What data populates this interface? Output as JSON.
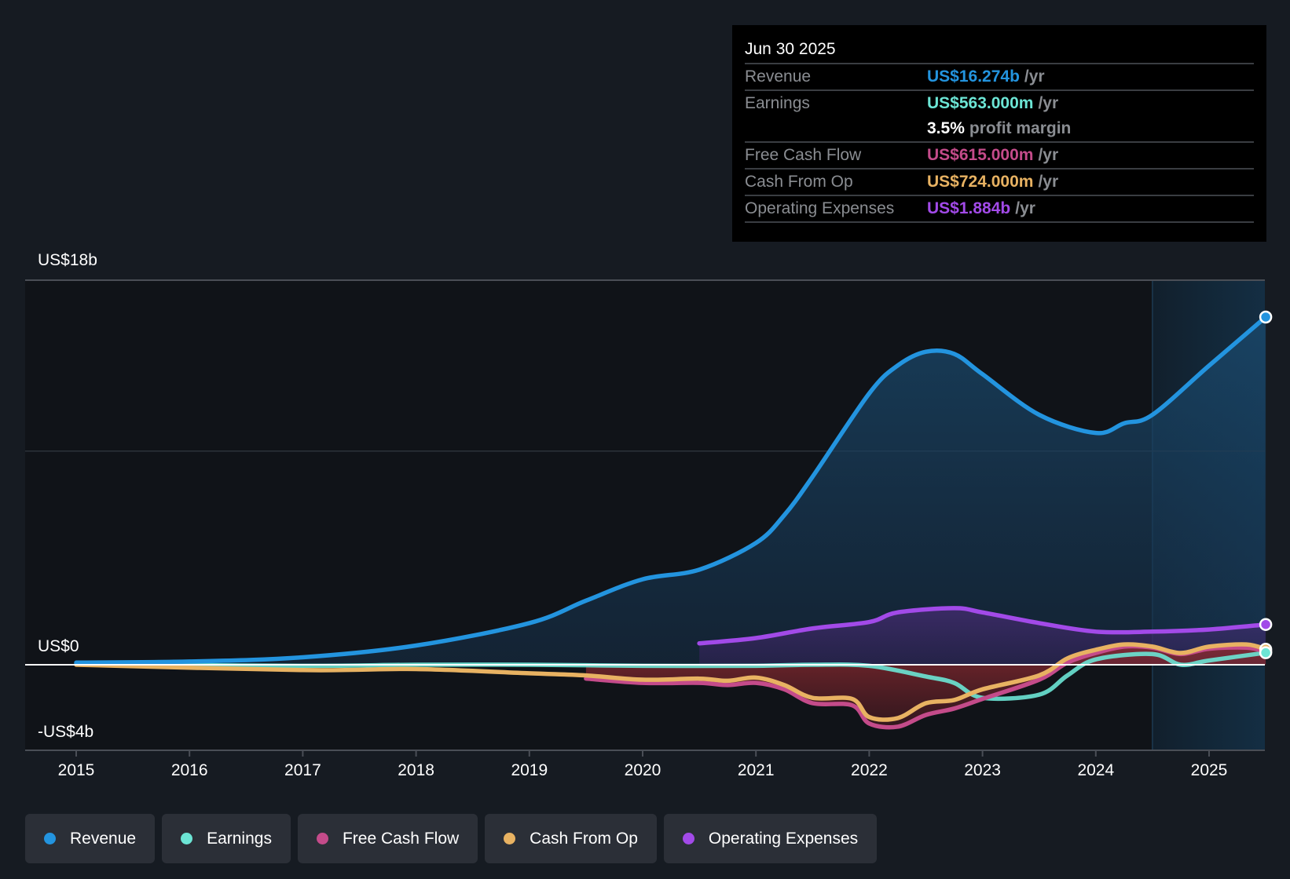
{
  "tooltip": {
    "date": "Jun 30 2025",
    "rows": [
      {
        "label": "Revenue",
        "value": "US$16.274b",
        "unit": "/yr",
        "color": "#2394df"
      },
      {
        "label": "Earnings",
        "value": "US$563.000m",
        "unit": "/yr",
        "color": "#6ce5d5"
      },
      {
        "label": "",
        "margin_value": "3.5%",
        "margin_label": "profit margin"
      },
      {
        "label": "Free Cash Flow",
        "value": "US$615.000m",
        "unit": "/yr",
        "color": "#c44b8a"
      },
      {
        "label": "Cash From Op",
        "value": "US$724.000m",
        "unit": "/yr",
        "color": "#e8b262"
      },
      {
        "label": "Operating Expenses",
        "value": "US$1.884b",
        "unit": "/yr",
        "color": "#a24ae8"
      }
    ]
  },
  "legend": [
    {
      "label": "Revenue",
      "color": "#2394df"
    },
    {
      "label": "Earnings",
      "color": "#6ce5d5"
    },
    {
      "label": "Free Cash Flow",
      "color": "#c44b8a"
    },
    {
      "label": "Cash From Op",
      "color": "#e8b262"
    },
    {
      "label": "Operating Expenses",
      "color": "#a24ae8"
    }
  ],
  "chart_data": {
    "type": "line",
    "title": "",
    "xlabel": "",
    "ylabel": "",
    "y_unit": "US$ billions",
    "ylim": [
      -4,
      18
    ],
    "xlim": [
      2014.55,
      2025.5
    ],
    "y_tick_labels": [
      {
        "value": 18,
        "label": "US$18b"
      },
      {
        "value": 0,
        "label": "US$0"
      },
      {
        "value": -4,
        "label": "-US$4b"
      }
    ],
    "gridlines_at": [
      18,
      10,
      0
    ],
    "x_ticks": [
      2015,
      2016,
      2017,
      2018,
      2019,
      2020,
      2021,
      2022,
      2023,
      2024,
      2025
    ],
    "x_tick_labels": [
      "2015",
      "2016",
      "2017",
      "2018",
      "2019",
      "2020",
      "2021",
      "2022",
      "2023",
      "2024",
      "2025"
    ],
    "highlight_from": 2024.5,
    "legend_position": "bottom",
    "series": [
      {
        "name": "Revenue",
        "color": "#2394df",
        "fill": true,
        "x": [
          2015,
          2016,
          2017,
          2018,
          2019,
          2019.5,
          2020,
          2020.5,
          2021,
          2021.25,
          2021.5,
          2022,
          2022.25,
          2022.5,
          2022.75,
          2023,
          2023.5,
          2024,
          2024.25,
          2024.5,
          2025,
          2025.5
        ],
        "y": [
          0.1,
          0.15,
          0.35,
          0.9,
          1.95,
          3.0,
          4.0,
          4.45,
          5.7,
          7.0,
          8.8,
          12.7,
          14.0,
          14.65,
          14.55,
          13.6,
          11.7,
          10.85,
          11.3,
          11.7,
          14.0,
          16.274
        ]
      },
      {
        "name": "Operating Expenses",
        "color": "#a24ae8",
        "fill": true,
        "x": [
          2020.5,
          2021,
          2021.5,
          2022,
          2022.25,
          2022.75,
          2023,
          2023.5,
          2024,
          2024.5,
          2025,
          2025.5
        ],
        "y": [
          1.0,
          1.25,
          1.7,
          2.0,
          2.45,
          2.65,
          2.45,
          1.95,
          1.55,
          1.55,
          1.65,
          1.884
        ]
      },
      {
        "name": "Earnings",
        "color": "#6ce5d5",
        "fill": false,
        "x": [
          2015,
          2017,
          2018,
          2019,
          2020,
          2021,
          2021.5,
          2022,
          2022.5,
          2022.75,
          2023,
          2023.5,
          2023.75,
          2024,
          2024.5,
          2024.75,
          2025,
          2025.5
        ],
        "y": [
          0.02,
          -0.05,
          0.0,
          0.0,
          -0.05,
          -0.05,
          0.0,
          -0.05,
          -0.55,
          -0.85,
          -1.55,
          -1.4,
          -0.5,
          0.25,
          0.5,
          0.0,
          0.2,
          0.563
        ]
      },
      {
        "name": "Free Cash Flow",
        "color": "#c44b8a",
        "fill": true,
        "x": [
          2019.5,
          2020,
          2020.5,
          2020.75,
          2021,
          2021.25,
          2021.5,
          2021.85,
          2022,
          2022.25,
          2022.5,
          2022.75,
          2023,
          2023.5,
          2023.75,
          2024,
          2024.25,
          2024.5,
          2024.75,
          2025,
          2025.33,
          2025.5
        ],
        "y": [
          -0.65,
          -0.85,
          -0.85,
          -0.95,
          -0.85,
          -1.15,
          -1.8,
          -1.9,
          -2.75,
          -2.9,
          -2.35,
          -2.05,
          -1.6,
          -0.7,
          0.1,
          0.55,
          0.85,
          0.8,
          0.5,
          0.75,
          0.8,
          0.615
        ]
      },
      {
        "name": "Cash From Op",
        "color": "#e8b262",
        "fill": false,
        "x": [
          2015,
          2017,
          2018,
          2019,
          2019.5,
          2020,
          2020.5,
          2020.75,
          2021,
          2021.25,
          2021.5,
          2021.85,
          2022,
          2022.25,
          2022.5,
          2022.75,
          2023,
          2023.5,
          2023.75,
          2024,
          2024.25,
          2024.5,
          2024.75,
          2025,
          2025.33,
          2025.5
        ],
        "y": [
          0.0,
          -0.25,
          -0.2,
          -0.4,
          -0.5,
          -0.7,
          -0.65,
          -0.75,
          -0.6,
          -0.95,
          -1.55,
          -1.6,
          -2.45,
          -2.5,
          -1.8,
          -1.65,
          -1.15,
          -0.5,
          0.3,
          0.7,
          0.95,
          0.85,
          0.55,
          0.85,
          0.95,
          0.724
        ]
      }
    ]
  }
}
